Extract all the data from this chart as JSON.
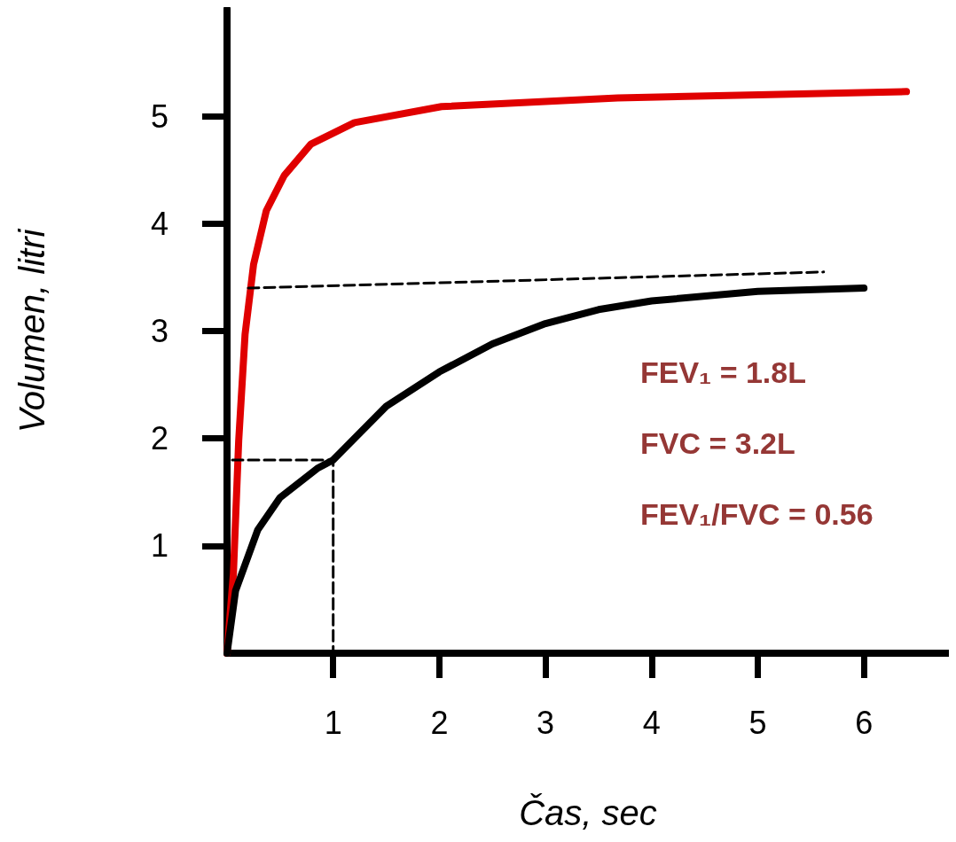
{
  "chart_data": {
    "type": "line",
    "xlabel": "Čas, sec",
    "ylabel": "Volumen, litri",
    "xlim": [
      0,
      6.8
    ],
    "ylim": [
      0,
      6
    ],
    "xticks": [
      1,
      2,
      3,
      4,
      5,
      6
    ],
    "yticks": [
      1,
      2,
      3,
      4,
      5
    ],
    "marker": "none",
    "annotations": [
      "FEV₁ = 1.8L",
      "FVC = 3.2L",
      "FEV₁/FVC = 0.56"
    ],
    "series": [
      {
        "color": "#e00000",
        "line_style": "solid",
        "x": [
          0,
          0.06,
          0.11,
          0.17,
          0.25,
          0.37,
          0.54,
          0.79,
          1.2,
          2.02,
          3.68,
          6.4
        ],
        "values": [
          0,
          0.74,
          1.98,
          2.97,
          3.62,
          4.12,
          4.45,
          4.74,
          4.94,
          5.09,
          5.17,
          5.23
        ]
      },
      {
        "color": "#000000",
        "line_style": "solid",
        "x": [
          0,
          0.08,
          0.29,
          0.5,
          0.85,
          1,
          1.5,
          2,
          2.5,
          3,
          3.5,
          4,
          5,
          6
        ],
        "values": [
          0,
          0.58,
          1.15,
          1.45,
          1.72,
          1.8,
          2.3,
          2.62,
          2.88,
          3.07,
          3.2,
          3.28,
          3.37,
          3.4
        ]
      },
      {
        "color": "#000000",
        "line_style": "dashed",
        "x": [
          0.2,
          5.62
        ],
        "values": [
          3.4,
          3.55
        ]
      },
      {
        "color": "#000000",
        "line_style": "dashed",
        "x": [
          0.05,
          1,
          1
        ],
        "values": [
          1.8,
          1.8,
          0
        ]
      }
    ]
  }
}
